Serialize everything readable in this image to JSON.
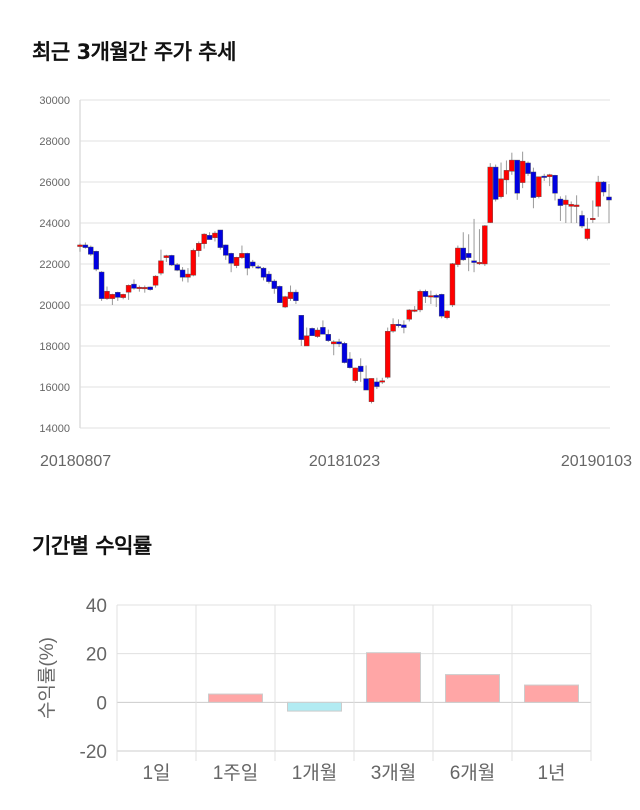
{
  "sections": {
    "price_title": "최근 3개월간 주가 추세",
    "return_title": "기간별 수익률"
  },
  "colors": {
    "up": "#ff0000",
    "down": "#0000e0",
    "pos_bar": "#ffa6a6",
    "neg_bar": "#b2ebf2",
    "grid": "#e0e0e0"
  },
  "chart_data": [
    {
      "type": "candlestick",
      "title": "최근 3개월간 주가 추세",
      "ylim": [
        14000,
        30000
      ],
      "yticks": [
        "30000",
        "28000",
        "26000",
        "24000",
        "22000",
        "20000",
        "18000",
        "16000",
        "14000"
      ],
      "xtick_labels": [
        "20180807",
        "20181023",
        "20190103"
      ],
      "xtick_index": [
        0,
        49,
        98
      ],
      "grid": true,
      "ohlc": [
        [
          22850,
          23000,
          22600,
          22930
        ],
        [
          22930,
          23050,
          22750,
          22800
        ],
        [
          22830,
          22900,
          22400,
          22470
        ],
        [
          22620,
          22650,
          21650,
          21740
        ],
        [
          21610,
          21650,
          20200,
          20310
        ],
        [
          20310,
          20900,
          20250,
          20670
        ],
        [
          20310,
          20550,
          20000,
          20520
        ],
        [
          20620,
          20650,
          20200,
          20370
        ],
        [
          20360,
          20550,
          20280,
          20520
        ],
        [
          20620,
          21000,
          20250,
          20960
        ],
        [
          21020,
          21250,
          20750,
          20810
        ],
        [
          20800,
          20950,
          20650,
          20870
        ],
        [
          20860,
          20950,
          20600,
          20860
        ],
        [
          20880,
          20900,
          20700,
          20750
        ],
        [
          20960,
          21450,
          20850,
          21410
        ],
        [
          21550,
          22700,
          21450,
          22160
        ],
        [
          22310,
          22450,
          22100,
          22410
        ],
        [
          22420,
          22450,
          21900,
          21950
        ],
        [
          21970,
          22050,
          21650,
          21690
        ],
        [
          21710,
          21850,
          21150,
          21350
        ],
        [
          21350,
          21800,
          21100,
          21510
        ],
        [
          21450,
          22750,
          21400,
          22670
        ],
        [
          22650,
          23100,
          22350,
          23010
        ],
        [
          22990,
          23500,
          22750,
          23460
        ],
        [
          23400,
          23550,
          23200,
          23190
        ],
        [
          23280,
          23600,
          23100,
          23510
        ],
        [
          23660,
          23660,
          22700,
          22800
        ],
        [
          22930,
          22950,
          22200,
          22420
        ],
        [
          22520,
          22550,
          21600,
          22030
        ],
        [
          21920,
          22350,
          21800,
          22330
        ],
        [
          22310,
          22900,
          22250,
          22520
        ],
        [
          22520,
          22550,
          21450,
          21790
        ],
        [
          22100,
          22200,
          21800,
          21900
        ],
        [
          21870,
          21950,
          21750,
          21800
        ],
        [
          21800,
          21850,
          21200,
          21350
        ],
        [
          21510,
          21650,
          21050,
          21140
        ],
        [
          21170,
          21250,
          20550,
          20800
        ],
        [
          20910,
          20950,
          20100,
          20110
        ],
        [
          19900,
          20450,
          19850,
          20410
        ],
        [
          20310,
          20950,
          20200,
          20630
        ],
        [
          20630,
          20750,
          20050,
          20210
        ],
        [
          19500,
          19500,
          18000,
          18310
        ],
        [
          18000,
          18900,
          18000,
          18500
        ],
        [
          18860,
          18900,
          18500,
          18500
        ],
        [
          18460,
          18900,
          18400,
          18780
        ],
        [
          18910,
          19250,
          18650,
          18570
        ],
        [
          18570,
          18800,
          18200,
          18260
        ],
        [
          18100,
          18280,
          17550,
          18210
        ],
        [
          18210,
          18350,
          17950,
          18100
        ],
        [
          18130,
          18200,
          17150,
          17190
        ],
        [
          17370,
          17700,
          16900,
          16940
        ],
        [
          16310,
          16950,
          16200,
          16930
        ],
        [
          17020,
          17400,
          16250,
          16750
        ],
        [
          16410,
          17050,
          16000,
          15850
        ],
        [
          15280,
          16420,
          15200,
          16420
        ],
        [
          16250,
          16450,
          15900,
          16020
        ],
        [
          16250,
          16450,
          16150,
          16310
        ],
        [
          16470,
          18900,
          16400,
          18720
        ],
        [
          18720,
          19350,
          18650,
          19060
        ],
        [
          19060,
          19300,
          18900,
          19010
        ],
        [
          19030,
          19250,
          18620,
          18900
        ],
        [
          19300,
          19800,
          19200,
          19760
        ],
        [
          19760,
          19950,
          19650,
          19760
        ],
        [
          19760,
          20750,
          19650,
          20670
        ],
        [
          20670,
          20750,
          20100,
          20410
        ],
        [
          20410,
          20700,
          20050,
          20460
        ],
        [
          20470,
          20550,
          19900,
          20370
        ],
        [
          20520,
          20550,
          19350,
          19450
        ],
        [
          19380,
          19750,
          19300,
          19710
        ],
        [
          20000,
          22050,
          19900,
          22020
        ],
        [
          21970,
          22900,
          21850,
          22780
        ],
        [
          22780,
          23550,
          22150,
          22200
        ],
        [
          22520,
          23450,
          21650,
          22310
        ],
        [
          22160,
          24200,
          21600,
          22070
        ],
        [
          22080,
          23700,
          21950,
          22080
        ],
        [
          22000,
          23900,
          21900,
          23870
        ],
        [
          24020,
          26920,
          24000,
          26730
        ],
        [
          26730,
          26850,
          25050,
          25150
        ],
        [
          25280,
          26950,
          25200,
          26160
        ],
        [
          26100,
          27050,
          25400,
          26570
        ],
        [
          26520,
          27430,
          26350,
          27070
        ],
        [
          27070,
          27070,
          25130,
          25450
        ],
        [
          25970,
          27480,
          25700,
          27020
        ],
        [
          26930,
          27000,
          26300,
          26410
        ],
        [
          26490,
          26700,
          24720,
          25240
        ],
        [
          25280,
          26260,
          25200,
          26260
        ],
        [
          26290,
          26400,
          26050,
          26240
        ],
        [
          26260,
          26400,
          25800,
          26360
        ],
        [
          26330,
          26350,
          25100,
          25450
        ],
        [
          25170,
          25300,
          24100,
          24850
        ],
        [
          24900,
          25350,
          24000,
          25120
        ],
        [
          24810,
          25050,
          24000,
          24910
        ],
        [
          24800,
          25350,
          24000,
          24880
        ],
        [
          24370,
          24600,
          23750,
          23850
        ],
        [
          23240,
          24250,
          23150,
          23710
        ],
        [
          24180,
          25100,
          24000,
          24230
        ],
        [
          24810,
          26300,
          24300,
          26000
        ],
        [
          26000,
          26050,
          25300,
          25510
        ],
        [
          25270,
          25900,
          24000,
          25120
        ]
      ]
    },
    {
      "type": "bar",
      "title": "기간별 수익률",
      "ylabel": "수익률(%)",
      "ylim": [
        -20,
        40
      ],
      "yticks": [
        "40",
        "20",
        "0",
        "-20"
      ],
      "categories": [
        "1일",
        "1주일",
        "1개월",
        "3개월",
        "6개월",
        "1년"
      ],
      "values": [
        0,
        3.4,
        -3.6,
        20.4,
        11.4,
        7.1
      ],
      "grid": true
    }
  ]
}
